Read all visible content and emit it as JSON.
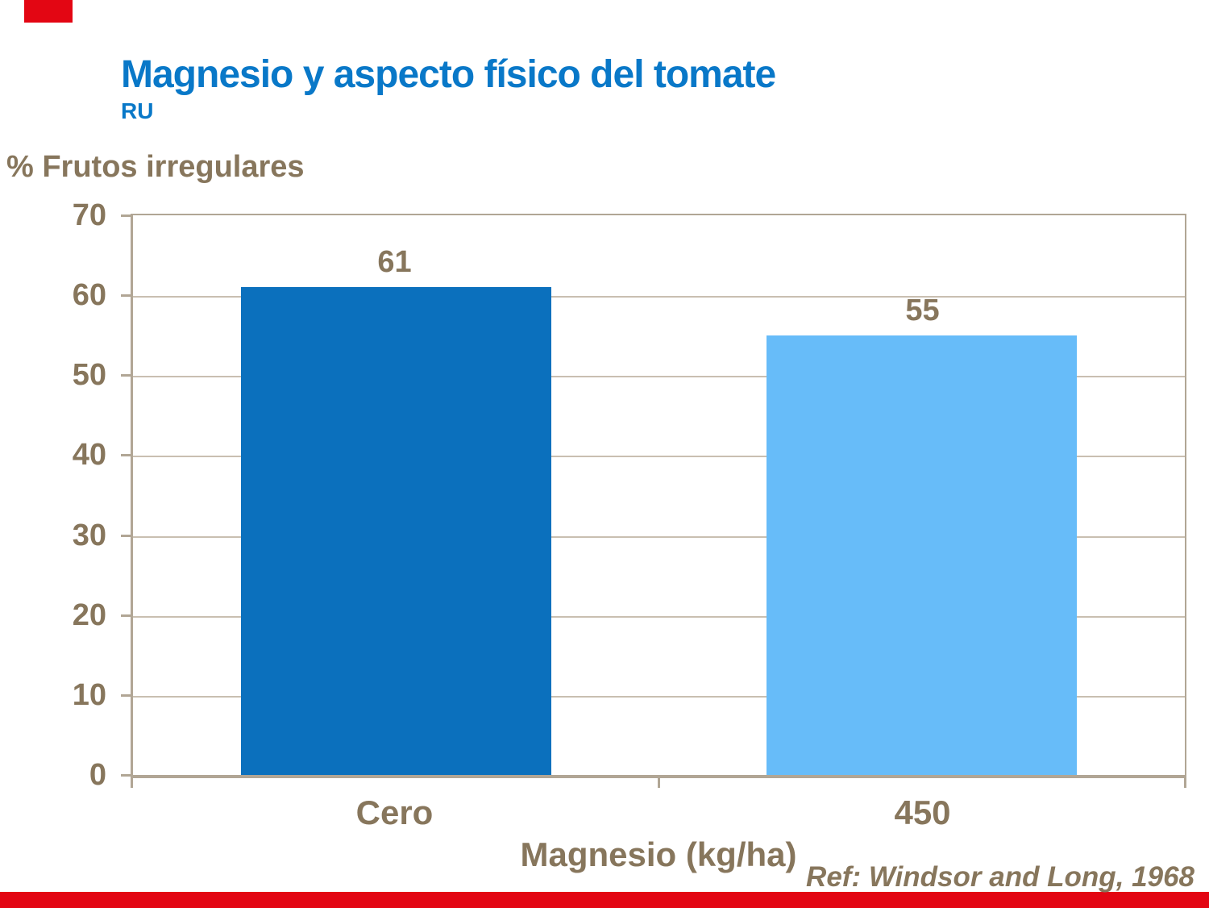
{
  "page": {
    "title": "Magnesio y aspecto físico del tomate",
    "subtitle": "RU",
    "reference": "Ref: Windsor and Long, 1968"
  },
  "chart_data": {
    "type": "bar",
    "title": "Magnesio y aspecto físico del tomate",
    "subtitle": "RU",
    "ylabel": "% Frutos irregulares",
    "xlabel": "Magnesio (kg/ha)",
    "categories": [
      "Cero",
      "450"
    ],
    "values": [
      61,
      55
    ],
    "value_labels": [
      "61",
      "55"
    ],
    "bar_colors": [
      "#0b70bd",
      "#67bcf9"
    ],
    "ylim": [
      0,
      70
    ],
    "yticks": [
      0,
      10,
      20,
      30,
      40,
      50,
      60,
      70
    ],
    "grid": true,
    "legend_position": "none",
    "annotation": "Ref: Windsor and Long, 1968"
  },
  "colors": {
    "title_blue": "#0978c8",
    "text_brown": "#87765c",
    "axis_frame": "#b1a695",
    "gridline": "#c9bfb1",
    "bar_dark_blue": "#0b70bd",
    "bar_light_blue": "#67bcf9",
    "accent_red": "#e30613"
  }
}
